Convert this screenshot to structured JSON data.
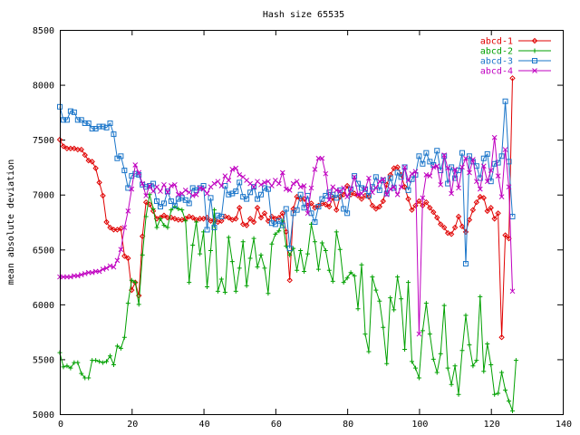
{
  "chart_data": {
    "type": "line",
    "title": "Hash size 65535",
    "xlabel": "",
    "ylabel": "mean absolute deviation",
    "xlim": [
      0,
      140
    ],
    "ylim": [
      5000,
      8500
    ],
    "xticks": [
      0,
      20,
      40,
      60,
      80,
      100,
      120,
      140
    ],
    "yticks": [
      5000,
      5500,
      6000,
      6500,
      7000,
      7500,
      8000,
      8500
    ],
    "grid": false,
    "legend": "top-right",
    "x_start": 0,
    "x_step": 1,
    "series": [
      {
        "name": "abcd-1",
        "color": "#e00000",
        "marker": "diamond",
        "values": [
          7500,
          7440,
          7420,
          7420,
          7420,
          7410,
          7410,
          7360,
          7310,
          7300,
          7240,
          7110,
          6990,
          6750,
          6700,
          6680,
          6680,
          6690,
          6440,
          6420,
          6130,
          6200,
          6080,
          6620,
          6930,
          6910,
          6850,
          6780,
          6790,
          6810,
          6790,
          6790,
          6780,
          6770,
          6770,
          6780,
          6800,
          6790,
          6770,
          6780,
          6780,
          6790,
          6760,
          6770,
          6750,
          6760,
          6800,
          6790,
          6770,
          6780,
          6880,
          6730,
          6720,
          6780,
          6750,
          6880,
          6790,
          6830,
          6760,
          6800,
          6780,
          6790,
          6830,
          6660,
          6220,
          6870,
          6980,
          6960,
          6960,
          6900,
          6920,
          6880,
          6900,
          6920,
          6910,
          6890,
          6970,
          6860,
          6980,
          7000,
          7080,
          7000,
          7010,
          6990,
          6960,
          6990,
          6980,
          6900,
          6870,
          6890,
          6940,
          7090,
          7180,
          7240,
          7250,
          7180,
          7070,
          6960,
          6860,
          6900,
          6940,
          6900,
          6930,
          6880,
          6840,
          6790,
          6730,
          6700,
          6650,
          6640,
          6700,
          6800,
          6710,
          6660,
          6770,
          6860,
          6930,
          6980,
          6970,
          6850,
          6880,
          6780,
          6830,
          5700,
          6630,
          6600,
          8060
        ]
      },
      {
        "name": "abcd-2",
        "color": "#00a000",
        "marker": "plus",
        "values": [
          5560,
          5430,
          5440,
          5420,
          5470,
          5470,
          5370,
          5330,
          5330,
          5490,
          5490,
          5480,
          5470,
          5480,
          5530,
          5450,
          5620,
          5600,
          5700,
          6010,
          6220,
          6200,
          6000,
          6450,
          6800,
          7000,
          6870,
          6700,
          6780,
          6720,
          6700,
          6860,
          6890,
          6870,
          6860,
          6760,
          6200,
          6540,
          6750,
          6460,
          6660,
          6160,
          6490,
          6860,
          6120,
          6230,
          6110,
          6610,
          6390,
          6120,
          6330,
          6570,
          6170,
          6420,
          6600,
          6340,
          6450,
          6330,
          6100,
          6550,
          6640,
          6670,
          6760,
          6530,
          6450,
          6510,
          6310,
          6490,
          6300,
          6460,
          6730,
          6570,
          6320,
          6560,
          6490,
          6310,
          6210,
          6660,
          6500,
          6200,
          6240,
          6290,
          6260,
          5960,
          6360,
          5730,
          5570,
          6250,
          6130,
          6030,
          5790,
          5460,
          6060,
          5950,
          6250,
          6050,
          5590,
          6200,
          5480,
          5420,
          5330,
          5760,
          6010,
          5730,
          5500,
          5380,
          5550,
          5990,
          5420,
          5270,
          5440,
          5180,
          5580,
          5900,
          5630,
          5440,
          5490,
          6070,
          5390,
          5640,
          5450,
          5180,
          5190,
          5380,
          5220,
          5120,
          5030,
          5490
        ]
      },
      {
        "name": "abcd-3",
        "color": "#1a75c9",
        "marker": "square",
        "values": [
          7800,
          7680,
          7680,
          7760,
          7750,
          7680,
          7680,
          7650,
          7650,
          7600,
          7600,
          7620,
          7620,
          7610,
          7650,
          7550,
          7330,
          7350,
          7220,
          7060,
          7170,
          7190,
          7180,
          7090,
          7070,
          7080,
          7100,
          6940,
          6890,
          6920,
          7030,
          6940,
          6900,
          6960,
          6970,
          6950,
          6920,
          7060,
          7040,
          7060,
          7080,
          6680,
          6970,
          6700,
          6810,
          6800,
          7080,
          7000,
          7010,
          7030,
          7110,
          6980,
          6960,
          7020,
          7070,
          6960,
          7000,
          7060,
          7050,
          6740,
          6730,
          6760,
          6720,
          6870,
          6510,
          6830,
          6860,
          7000,
          6880,
          6990,
          6830,
          6750,
          6890,
          6960,
          6990,
          7020,
          7000,
          6970,
          7040,
          6870,
          6830,
          7050,
          7170,
          7100,
          7060,
          7050,
          6990,
          7070,
          7160,
          7040,
          7130,
          7010,
          7150,
          7060,
          7200,
          7160,
          7250,
          7040,
          7140,
          7180,
          7350,
          7280,
          7380,
          7300,
          7270,
          7400,
          7220,
          7350,
          7100,
          7250,
          7150,
          7220,
          7380,
          6370,
          7350,
          7300,
          7260,
          7150,
          7330,
          7370,
          7120,
          7280,
          7290,
          7350,
          7850,
          7300,
          6800
        ]
      },
      {
        "name": "abcd-4",
        "color": "#c000c0",
        "marker": "x",
        "values": [
          6250,
          6250,
          6250,
          6250,
          6260,
          6260,
          6270,
          6280,
          6290,
          6290,
          6300,
          6300,
          6320,
          6330,
          6350,
          6340,
          6400,
          6500,
          6700,
          6850,
          7050,
          7270,
          7200,
          7100,
          6990,
          7080,
          7030,
          7070,
          7030,
          7090,
          7020,
          7080,
          7090,
          7000,
          7010,
          7040,
          7020,
          6990,
          7000,
          7060,
          7050,
          7010,
          7070,
          7100,
          7120,
          7080,
          7170,
          7130,
          7230,
          7240,
          7180,
          7160,
          7130,
          7100,
          7070,
          7120,
          7090,
          7110,
          7120,
          7080,
          7130,
          7100,
          7200,
          7050,
          7040,
          7100,
          7120,
          7070,
          7080,
          6830,
          7060,
          7230,
          7330,
          7330,
          7190,
          6950,
          7070,
          7040,
          7030,
          7060,
          6980,
          7050,
          7160,
          7000,
          7010,
          7050,
          7150,
          7020,
          7060,
          7120,
          7140,
          7000,
          7050,
          7070,
          7000,
          7070,
          7250,
          7130,
          7190,
          7210,
          5730,
          6970,
          7180,
          7170,
          7250,
          7260,
          7090,
          7360,
          7240,
          7010,
          7230,
          7060,
          7250,
          7330,
          7200,
          7320,
          7120,
          7050,
          7260,
          7120,
          7220,
          7520,
          7170,
          6980,
          7410,
          7070,
          6120
        ]
      }
    ]
  }
}
